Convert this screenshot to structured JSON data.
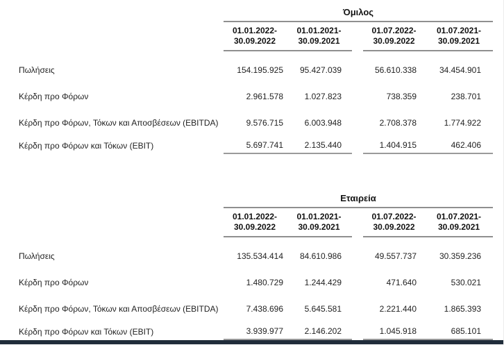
{
  "page": {
    "background_color": "#ffffff",
    "rule_color": "#8f8f8f",
    "bottom_bar_color": "#202c3a",
    "text_color": "#1f1f1f"
  },
  "tables": [
    {
      "title": "Όμιλος",
      "periods": [
        {
          "line1": "01.01.2022-",
          "line2": "30.09.2022"
        },
        {
          "line1": "01.01.2021-",
          "line2": "30.09.2021"
        },
        {
          "line1": "01.07.2022-",
          "line2": "30.09.2022"
        },
        {
          "line1": "01.07.2021-",
          "line2": "30.09.2021"
        }
      ],
      "rows": [
        {
          "label": "Πωλήσεις",
          "values": [
            "154.195.925",
            "95.427.039",
            "56.610.338",
            "34.454.901"
          ]
        },
        {
          "label": "Κέρδη προ Φόρων",
          "values": [
            "2.961.578",
            "1.027.823",
            "738.359",
            "238.701"
          ]
        },
        {
          "label": "Κέρδη προ Φόρων, Τόκων και Αποσβέσεων (EBITDA)",
          "values": [
            "9.576.715",
            "6.003.948",
            "2.708.378",
            "1.774.922"
          ]
        },
        {
          "label": "Κέρδη προ Φόρων και Τόκων (EBIT)",
          "values": [
            "5.697.741",
            "2.135.440",
            "1.404.915",
            "462.406"
          ]
        }
      ]
    },
    {
      "title": "Εταιρεία",
      "periods": [
        {
          "line1": "01.01.2022-",
          "line2": "30.09.2022"
        },
        {
          "line1": "01.01.2021-",
          "line2": "30.09.2021"
        },
        {
          "line1": "01.07.2022-",
          "line2": "30.09.2022"
        },
        {
          "line1": "01.07.2021-",
          "line2": "30.09.2021"
        }
      ],
      "rows": [
        {
          "label": "Πωλήσεις",
          "values": [
            "135.534.414",
            "84.610.986",
            "49.557.737",
            "30.359.236"
          ]
        },
        {
          "label": "Κέρδη προ Φόρων",
          "values": [
            "1.480.729",
            "1.244.429",
            "471.640",
            "530.021"
          ]
        },
        {
          "label": "Κέρδη προ Φόρων, Τόκων και Αποσβέσεων (EBITDA)",
          "values": [
            "7.438.696",
            "5.645.581",
            "2.221.440",
            "1.865.393"
          ]
        },
        {
          "label": "Κέρδη προ Φόρων και Τόκων (EBIT)",
          "values": [
            "3.939.977",
            "2.146.202",
            "1.045.918",
            "685.101"
          ]
        }
      ]
    }
  ]
}
